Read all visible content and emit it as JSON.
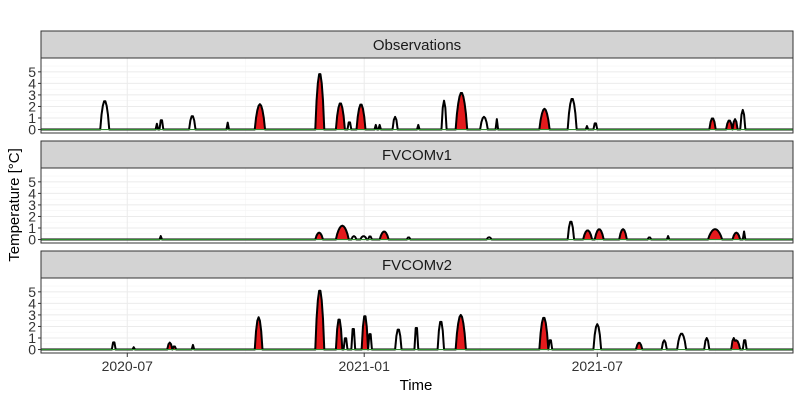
{
  "chart_data": {
    "type": "area",
    "xlabel": "Time",
    "ylabel": "Temperature [°C]",
    "x_range": [
      "2020-04-25",
      "2021-11-30"
    ],
    "y_range": [
      -0.3,
      6.2
    ],
    "x_ticks": [
      {
        "label": "2020-07",
        "date": "2020-07-01"
      },
      {
        "label": "2021-01",
        "date": "2021-01-01"
      },
      {
        "label": "2021-07",
        "date": "2021-07-01"
      }
    ],
    "y_ticks": [
      "0",
      "1",
      "2",
      "3",
      "4",
      "5"
    ],
    "panels": [
      {
        "strip": "Observations",
        "events": [
          {
            "start": "2020-06-10",
            "end": "2020-06-17",
            "peak": 2.5,
            "heatwave": false
          },
          {
            "start": "2020-07-23",
            "end": "2020-07-25",
            "peak": 0.5,
            "heatwave": false
          },
          {
            "start": "2020-07-26",
            "end": "2020-07-29",
            "peak": 0.9,
            "heatwave": false
          },
          {
            "start": "2020-08-18",
            "end": "2020-08-23",
            "peak": 1.2,
            "heatwave": false
          },
          {
            "start": "2020-09-16",
            "end": "2020-09-18",
            "peak": 0.6,
            "heatwave": false
          },
          {
            "start": "2020-10-08",
            "end": "2020-10-16",
            "peak": 2.2,
            "heatwave": true
          },
          {
            "start": "2020-11-24",
            "end": "2020-12-01",
            "peak": 4.9,
            "heatwave": true
          },
          {
            "start": "2020-12-10",
            "end": "2020-12-17",
            "peak": 2.3,
            "heatwave": true
          },
          {
            "start": "2020-12-19",
            "end": "2020-12-22",
            "peak": 0.7,
            "heatwave": false
          },
          {
            "start": "2020-12-26",
            "end": "2021-01-02",
            "peak": 2.2,
            "heatwave": true
          },
          {
            "start": "2021-01-09",
            "end": "2021-01-11",
            "peak": 0.4,
            "heatwave": false
          },
          {
            "start": "2021-01-12",
            "end": "2021-01-14",
            "peak": 0.4,
            "heatwave": false
          },
          {
            "start": "2021-01-23",
            "end": "2021-01-27",
            "peak": 1.1,
            "heatwave": false
          },
          {
            "start": "2021-02-11",
            "end": "2021-02-13",
            "peak": 0.4,
            "heatwave": false
          },
          {
            "start": "2021-03-02",
            "end": "2021-03-06",
            "peak": 2.5,
            "heatwave": false
          },
          {
            "start": "2021-03-13",
            "end": "2021-03-22",
            "peak": 3.2,
            "heatwave": true
          },
          {
            "start": "2021-04-01",
            "end": "2021-04-07",
            "peak": 1.1,
            "heatwave": false
          },
          {
            "start": "2021-04-13",
            "end": "2021-04-15",
            "peak": 0.9,
            "heatwave": false
          },
          {
            "start": "2021-05-17",
            "end": "2021-05-25",
            "peak": 1.8,
            "heatwave": true
          },
          {
            "start": "2021-06-08",
            "end": "2021-06-15",
            "peak": 2.7,
            "heatwave": false
          },
          {
            "start": "2021-06-22",
            "end": "2021-06-24",
            "peak": 0.3,
            "heatwave": false
          },
          {
            "start": "2021-06-28",
            "end": "2021-07-01",
            "peak": 0.6,
            "heatwave": false
          },
          {
            "start": "2021-09-26",
            "end": "2021-10-01",
            "peak": 1.0,
            "heatwave": true
          },
          {
            "start": "2021-10-09",
            "end": "2021-10-14",
            "peak": 0.8,
            "heatwave": true
          },
          {
            "start": "2021-10-14",
            "end": "2021-10-18",
            "peak": 0.9,
            "heatwave": true
          },
          {
            "start": "2021-10-20",
            "end": "2021-10-24",
            "peak": 1.7,
            "heatwave": false
          }
        ]
      },
      {
        "strip": "FVCOMv1",
        "events": [
          {
            "start": "2020-07-26",
            "end": "2020-07-28",
            "peak": 0.3,
            "heatwave": false
          },
          {
            "start": "2020-11-24",
            "end": "2020-11-30",
            "peak": 0.6,
            "heatwave": true
          },
          {
            "start": "2020-12-10",
            "end": "2020-12-20",
            "peak": 1.2,
            "heatwave": true
          },
          {
            "start": "2020-12-22",
            "end": "2020-12-26",
            "peak": 0.3,
            "heatwave": false
          },
          {
            "start": "2020-12-29",
            "end": "2021-01-03",
            "peak": 0.3,
            "heatwave": false
          },
          {
            "start": "2021-01-04",
            "end": "2021-01-07",
            "peak": 0.3,
            "heatwave": false
          },
          {
            "start": "2021-01-13",
            "end": "2021-01-20",
            "peak": 0.7,
            "heatwave": true
          },
          {
            "start": "2021-02-03",
            "end": "2021-02-06",
            "peak": 0.2,
            "heatwave": false
          },
          {
            "start": "2021-04-06",
            "end": "2021-04-10",
            "peak": 0.2,
            "heatwave": false
          },
          {
            "start": "2021-06-08",
            "end": "2021-06-13",
            "peak": 1.6,
            "heatwave": false
          },
          {
            "start": "2021-06-20",
            "end": "2021-06-27",
            "peak": 0.8,
            "heatwave": true
          },
          {
            "start": "2021-06-29",
            "end": "2021-07-06",
            "peak": 0.9,
            "heatwave": true
          },
          {
            "start": "2021-07-18",
            "end": "2021-07-24",
            "peak": 0.9,
            "heatwave": true
          },
          {
            "start": "2021-08-09",
            "end": "2021-08-12",
            "peak": 0.2,
            "heatwave": false
          },
          {
            "start": "2021-08-24",
            "end": "2021-08-26",
            "peak": 0.3,
            "heatwave": false
          },
          {
            "start": "2021-09-25",
            "end": "2021-10-06",
            "peak": 0.9,
            "heatwave": true
          },
          {
            "start": "2021-10-14",
            "end": "2021-10-20",
            "peak": 0.6,
            "heatwave": true
          },
          {
            "start": "2021-10-22",
            "end": "2021-10-24",
            "peak": 0.7,
            "heatwave": false
          }
        ]
      },
      {
        "strip": "FVCOMv2",
        "events": [
          {
            "start": "2020-06-19",
            "end": "2020-06-22",
            "peak": 0.7,
            "heatwave": false
          },
          {
            "start": "2020-07-05",
            "end": "2020-07-07",
            "peak": 0.2,
            "heatwave": false
          },
          {
            "start": "2020-08-01",
            "end": "2020-08-05",
            "peak": 0.6,
            "heatwave": true
          },
          {
            "start": "2020-08-05",
            "end": "2020-08-08",
            "peak": 0.3,
            "heatwave": true
          },
          {
            "start": "2020-08-20",
            "end": "2020-08-22",
            "peak": 0.4,
            "heatwave": false
          },
          {
            "start": "2020-10-08",
            "end": "2020-10-14",
            "peak": 2.8,
            "heatwave": true
          },
          {
            "start": "2020-11-24",
            "end": "2020-12-01",
            "peak": 5.2,
            "heatwave": true
          },
          {
            "start": "2020-12-10",
            "end": "2020-12-15",
            "peak": 2.7,
            "heatwave": true
          },
          {
            "start": "2020-12-16",
            "end": "2020-12-19",
            "peak": 1.1,
            "heatwave": false
          },
          {
            "start": "2020-12-22",
            "end": "2020-12-25",
            "peak": 2.0,
            "heatwave": false
          },
          {
            "start": "2020-12-30",
            "end": "2021-01-04",
            "peak": 3.0,
            "heatwave": true
          },
          {
            "start": "2021-01-04",
            "end": "2021-01-07",
            "peak": 1.5,
            "heatwave": false
          },
          {
            "start": "2021-01-25",
            "end": "2021-01-30",
            "peak": 1.8,
            "heatwave": false
          },
          {
            "start": "2021-02-09",
            "end": "2021-02-12",
            "peak": 2.1,
            "heatwave": false
          },
          {
            "start": "2021-02-27",
            "end": "2021-03-04",
            "peak": 2.5,
            "heatwave": false
          },
          {
            "start": "2021-03-13",
            "end": "2021-03-21",
            "peak": 3.0,
            "heatwave": true
          },
          {
            "start": "2021-05-17",
            "end": "2021-05-24",
            "peak": 2.8,
            "heatwave": true
          },
          {
            "start": "2021-05-24",
            "end": "2021-05-27",
            "peak": 0.9,
            "heatwave": false
          },
          {
            "start": "2021-06-28",
            "end": "2021-07-04",
            "peak": 2.2,
            "heatwave": false
          },
          {
            "start": "2021-07-31",
            "end": "2021-08-05",
            "peak": 0.6,
            "heatwave": true
          },
          {
            "start": "2021-08-20",
            "end": "2021-08-24",
            "peak": 0.8,
            "heatwave": false
          },
          {
            "start": "2021-09-01",
            "end": "2021-09-08",
            "peak": 1.4,
            "heatwave": false
          },
          {
            "start": "2021-09-22",
            "end": "2021-09-26",
            "peak": 1.0,
            "heatwave": false
          },
          {
            "start": "2021-10-13",
            "end": "2021-10-17",
            "peak": 1.0,
            "heatwave": false
          },
          {
            "start": "2021-10-14",
            "end": "2021-10-20",
            "peak": 0.8,
            "heatwave": true
          },
          {
            "start": "2021-10-22",
            "end": "2021-10-25",
            "peak": 0.9,
            "heatwave": false
          }
        ]
      }
    ],
    "colors": {
      "line": "#000000",
      "heatwave_fill": "#e41a1c",
      "zero_line": "#2e8b2e",
      "strip_fill": "#d3d3d3"
    },
    "grid": true,
    "legend": "none"
  }
}
